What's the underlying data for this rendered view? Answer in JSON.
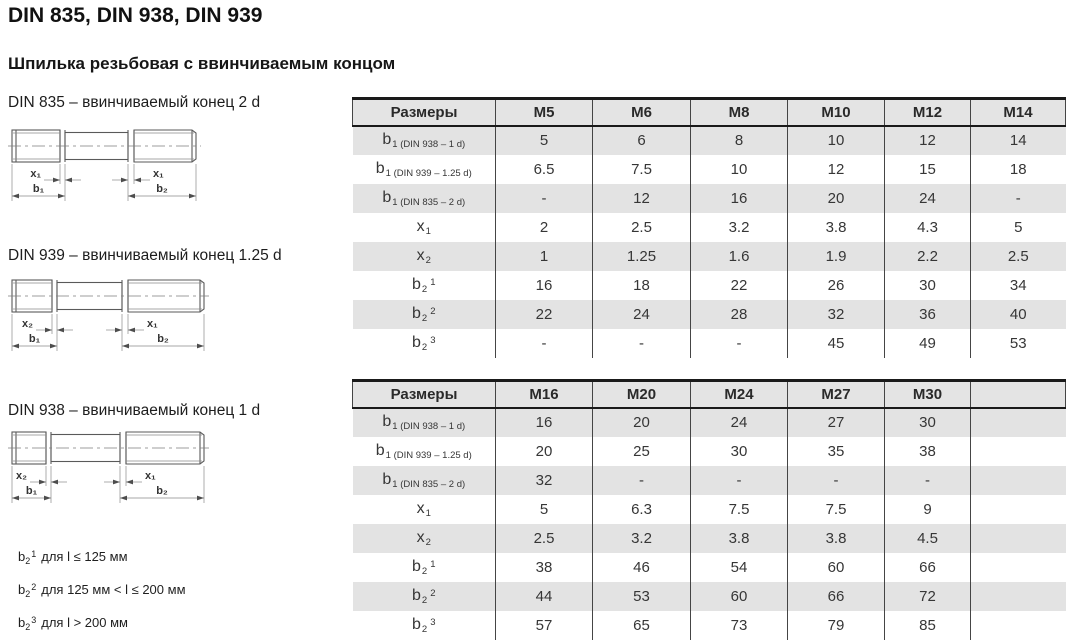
{
  "page": {
    "title": "DIN 835, DIN 938, DIN 939",
    "subtitle": "Шпилька резьбовая с ввинчиваемым концом"
  },
  "colors": {
    "header_bg": "#e4e4e4",
    "stripe_bg": "#e3e3e3",
    "border_dark": "#1a1a1a",
    "grid_line": "#454545",
    "text_main": "#333333",
    "draw_line": "#5a5a5a"
  },
  "drawings": [
    {
      "caption": "DIN 835 – ввинчиваемый конец 2 d",
      "labels": {
        "left_x": "x₁",
        "right_x": "x₁",
        "left_b": "b₁",
        "right_b": "b₂"
      }
    },
    {
      "caption": "DIN 939 – ввинчиваемый конец 1.25 d",
      "labels": {
        "left_x": "x₂",
        "right_x": "x₁",
        "left_b": "b₁",
        "right_b": "b₂"
      }
    },
    {
      "caption": "DIN 938 – ввинчиваемый конец 1 d",
      "labels": {
        "left_x": "x₂",
        "right_x": "x₁",
        "left_b": "b₁",
        "right_b": "b₂"
      }
    }
  ],
  "footnotes": [
    {
      "base": "b",
      "sub": "2",
      "sup": "1",
      "text": "для l ≤ 125 мм"
    },
    {
      "base": "b",
      "sub": "2",
      "sup": "2",
      "text": "для 125 мм < l ≤ 200 мм"
    },
    {
      "base": "b",
      "sub": "2",
      "sup": "3",
      "text": "для l > 200 мм"
    }
  ],
  "tables": [
    {
      "header": [
        "Размеры",
        "M5",
        "M6",
        "M8",
        "M10",
        "M12",
        "M14"
      ],
      "rows": [
        {
          "label": {
            "base": "b",
            "sub": "1 (DIN 938 – 1 d)",
            "sup": ""
          },
          "values": [
            "5",
            "6",
            "8",
            "10",
            "12",
            "14"
          ]
        },
        {
          "label": {
            "base": "b",
            "sub": "1 (DIN 939 – 1.25 d)",
            "sup": ""
          },
          "values": [
            "6.5",
            "7.5",
            "10",
            "12",
            "15",
            "18"
          ]
        },
        {
          "label": {
            "base": "b",
            "sub": "1 (DIN 835 – 2 d)",
            "sup": ""
          },
          "values": [
            "-",
            "12",
            "16",
            "20",
            "24",
            "-"
          ]
        },
        {
          "label": {
            "base": "x",
            "sub": "1",
            "sup": ""
          },
          "values": [
            "2",
            "2.5",
            "3.2",
            "3.8",
            "4.3",
            "5"
          ]
        },
        {
          "label": {
            "base": "x",
            "sub": "2",
            "sup": ""
          },
          "values": [
            "1",
            "1.25",
            "1.6",
            "1.9",
            "2.2",
            "2.5"
          ]
        },
        {
          "label": {
            "base": "b",
            "sub": "2",
            "sup": "1"
          },
          "values": [
            "16",
            "18",
            "22",
            "26",
            "30",
            "34"
          ]
        },
        {
          "label": {
            "base": "b",
            "sub": "2",
            "sup": "2"
          },
          "values": [
            "22",
            "24",
            "28",
            "32",
            "36",
            "40"
          ]
        },
        {
          "label": {
            "base": "b",
            "sub": "2",
            "sup": "3"
          },
          "values": [
            "-",
            "-",
            "-",
            "45",
            "49",
            "53"
          ]
        }
      ]
    },
    {
      "header": [
        "Размеры",
        "M16",
        "M20",
        "M24",
        "M27",
        "M30",
        ""
      ],
      "rows": [
        {
          "label": {
            "base": "b",
            "sub": "1 (DIN 938 – 1 d)",
            "sup": ""
          },
          "values": [
            "16",
            "20",
            "24",
            "27",
            "30",
            ""
          ]
        },
        {
          "label": {
            "base": "b",
            "sub": "1 (DIN 939 – 1.25 d)",
            "sup": ""
          },
          "values": [
            "20",
            "25",
            "30",
            "35",
            "38",
            ""
          ]
        },
        {
          "label": {
            "base": "b",
            "sub": "1 (DIN 835 – 2 d)",
            "sup": ""
          },
          "values": [
            "32",
            "-",
            "-",
            "-",
            "-",
            ""
          ]
        },
        {
          "label": {
            "base": "x",
            "sub": "1",
            "sup": ""
          },
          "values": [
            "5",
            "6.3",
            "7.5",
            "7.5",
            "9",
            ""
          ]
        },
        {
          "label": {
            "base": "x",
            "sub": "2",
            "sup": ""
          },
          "values": [
            "2.5",
            "3.2",
            "3.8",
            "3.8",
            "4.5",
            ""
          ]
        },
        {
          "label": {
            "base": "b",
            "sub": "2",
            "sup": "1"
          },
          "values": [
            "38",
            "46",
            "54",
            "60",
            "66",
            ""
          ]
        },
        {
          "label": {
            "base": "b",
            "sub": "2",
            "sup": "2"
          },
          "values": [
            "44",
            "53",
            "60",
            "66",
            "72",
            ""
          ]
        },
        {
          "label": {
            "base": "b",
            "sub": "2",
            "sup": "3"
          },
          "values": [
            "57",
            "65",
            "73",
            "79",
            "85",
            ""
          ]
        }
      ]
    }
  ]
}
